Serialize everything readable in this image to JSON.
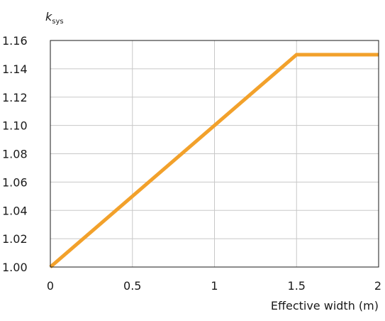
{
  "chart_data": {
    "type": "line",
    "xlabel": "Effective width (m)",
    "ylabel": {
      "symbol": "k",
      "subscript": "sys"
    },
    "xlim": [
      0,
      2
    ],
    "ylim": [
      1.0,
      1.16
    ],
    "x_ticks": [
      {
        "value": 0,
        "label": "0"
      },
      {
        "value": 0.5,
        "label": "0.5"
      },
      {
        "value": 1,
        "label": "1"
      },
      {
        "value": 1.5,
        "label": "1.5"
      },
      {
        "value": 2,
        "label": "2"
      }
    ],
    "y_ticks": [
      {
        "value": 1.0,
        "label": "1.00"
      },
      {
        "value": 1.02,
        "label": "1.02"
      },
      {
        "value": 1.04,
        "label": "1.04"
      },
      {
        "value": 1.06,
        "label": "1.06"
      },
      {
        "value": 1.08,
        "label": "1.08"
      },
      {
        "value": 1.1,
        "label": "1.10"
      },
      {
        "value": 1.12,
        "label": "1.12"
      },
      {
        "value": 1.14,
        "label": "1.14"
      },
      {
        "value": 1.16,
        "label": "1.16"
      }
    ],
    "grid": true,
    "series": [
      {
        "color": "#f2a12b",
        "x": [
          0,
          1.5,
          2
        ],
        "y": [
          1.0,
          1.15,
          1.15
        ]
      }
    ]
  }
}
